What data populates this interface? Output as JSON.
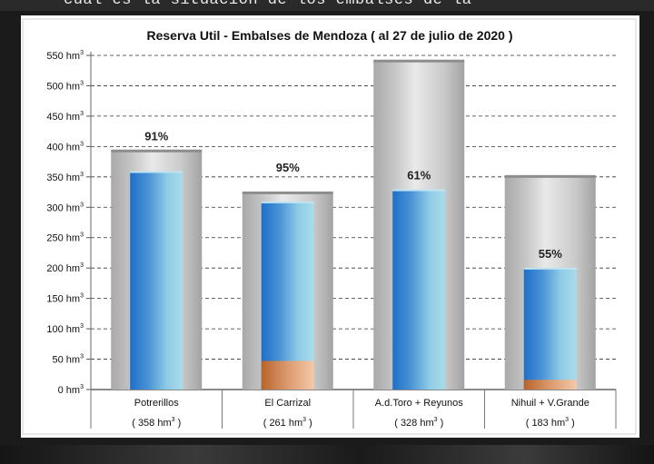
{
  "caption_fragment": "cuál es la situación de los embalses de la",
  "chart_data": {
    "type": "bar",
    "title": "Reserva Util - Embalses de Mendoza   ( al 27 de julio de 2020 )",
    "y_unit": "hm³",
    "ylim": [
      0,
      550
    ],
    "yticks": [
      0,
      50,
      100,
      150,
      200,
      250,
      300,
      350,
      400,
      450,
      500,
      550
    ],
    "grid": true,
    "categories": [
      "Potrerillos",
      "El Carrizal",
      "A.d.Toro + Reyunos",
      "Nihuil + V.Grande"
    ],
    "category_values": [
      "( 358 hm³ )",
      "( 261 hm³ )",
      "( 328 hm³ )",
      "( 183 hm³ )"
    ],
    "series": [
      {
        "role": "capacity",
        "values": [
          392,
          323,
          540,
          350
        ]
      },
      {
        "role": "current",
        "values": [
          358,
          308,
          328,
          199
        ]
      },
      {
        "role": "dead_storage",
        "values": [
          0,
          47,
          0,
          16
        ]
      }
    ],
    "percent_labels": [
      "91%",
      "95%",
      "61%",
      "55%"
    ],
    "colors": {
      "capacity": "#b5b5b5",
      "water_dark": "#1e6fc8",
      "water_light": "#a9dcea",
      "sediment_dark": "#b8642a",
      "sediment_light": "#f3c9a8",
      "grid": "#333333"
    }
  }
}
